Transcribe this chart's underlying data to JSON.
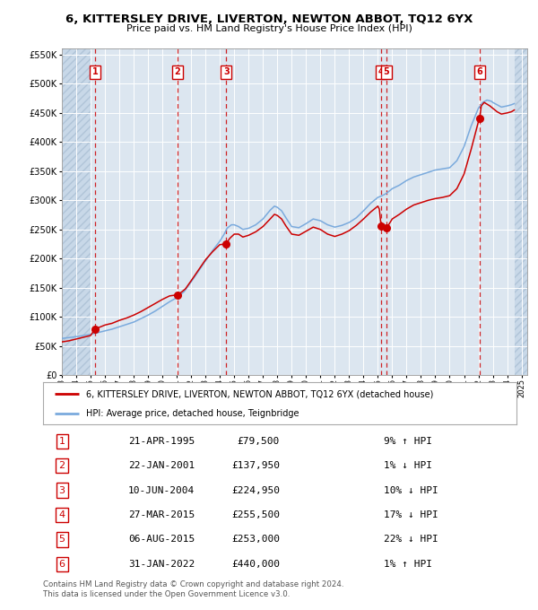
{
  "title": "6, KITTERSLEY DRIVE, LIVERTON, NEWTON ABBOT, TQ12 6YX",
  "subtitle": "Price paid vs. HM Land Registry's House Price Index (HPI)",
  "transactions": [
    {
      "num": 1,
      "date": "1995-04-21",
      "price": 79500,
      "pct": "9%",
      "dir": "↑"
    },
    {
      "num": 2,
      "date": "2001-01-22",
      "price": 137950,
      "pct": "1%",
      "dir": "↓"
    },
    {
      "num": 3,
      "date": "2004-06-10",
      "price": 224950,
      "pct": "10%",
      "dir": "↓"
    },
    {
      "num": 4,
      "date": "2015-03-27",
      "price": 255500,
      "pct": "17%",
      "dir": "↓"
    },
    {
      "num": 5,
      "date": "2015-08-06",
      "price": 253000,
      "pct": "22%",
      "dir": "↓"
    },
    {
      "num": 6,
      "date": "2022-01-31",
      "price": 440000,
      "pct": "1%",
      "dir": "↑"
    }
  ],
  "trans_x": [
    1995.31,
    2001.06,
    2004.44,
    2015.23,
    2015.6,
    2022.08
  ],
  "trans_y": [
    79500,
    137950,
    224950,
    255500,
    253000,
    440000
  ],
  "legend_label_red": "6, KITTERSLEY DRIVE, LIVERTON, NEWTON ABBOT, TQ12 6YX (detached house)",
  "legend_label_blue": "HPI: Average price, detached house, Teignbridge",
  "footer1": "Contains HM Land Registry data © Crown copyright and database right 2024.",
  "footer2": "This data is licensed under the Open Government Licence v3.0.",
  "ylim": [
    0,
    560000
  ],
  "yticks": [
    0,
    50000,
    100000,
    150000,
    200000,
    250000,
    300000,
    350000,
    400000,
    450000,
    500000,
    550000
  ],
  "bg_color": "#dce6f0",
  "hatch_color": "#c8d8e8",
  "grid_color": "#ffffff",
  "red_line_color": "#cc0000",
  "blue_line_color": "#7aaadd",
  "dot_color": "#cc0000",
  "vline_color": "#cc0000",
  "label_box_color": "#cc0000",
  "xmin": 1993.0,
  "xmax": 2025.4,
  "hatch_left_end": 1995.0,
  "hatch_right_start": 2024.5,
  "table_rows": [
    [
      "1",
      "21-APR-1995",
      "£79,500",
      "9% ↑ HPI"
    ],
    [
      "2",
      "22-JAN-2001",
      "£137,950",
      "1% ↓ HPI"
    ],
    [
      "3",
      "10-JUN-2004",
      "£224,950",
      "10% ↓ HPI"
    ],
    [
      "4",
      "27-MAR-2015",
      "£255,500",
      "17% ↓ HPI"
    ],
    [
      "5",
      "06-AUG-2015",
      "£253,000",
      "22% ↓ HPI"
    ],
    [
      "6",
      "31-JAN-2022",
      "£440,000",
      "1% ↑ HPI"
    ]
  ]
}
